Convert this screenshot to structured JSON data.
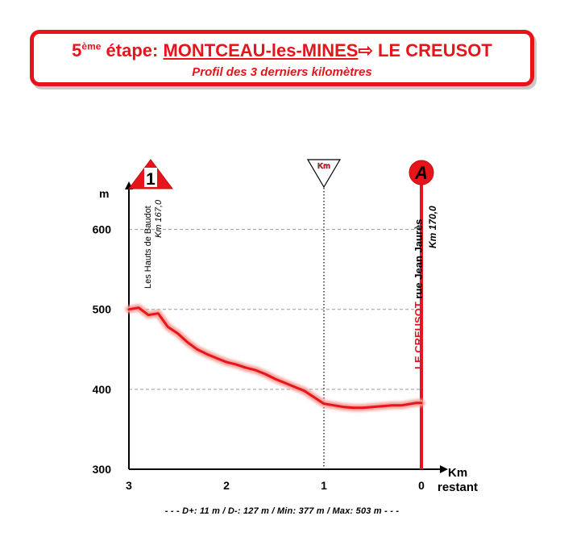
{
  "header": {
    "stage_num": "5",
    "stage_sup": "ème",
    "stage_word": " étape: ",
    "start_town": "MONTCEAU-les-MINES",
    "arrow": "⇨",
    "end_town": " LE CREUSOT",
    "subtitle": "Profil des 3 derniers kilomètres"
  },
  "colors": {
    "accent": "#e8141b",
    "profile_glow": "#f5a099",
    "grid": "#9a9a9a"
  },
  "chart_data": {
    "type": "line",
    "xlabel": "Km restant",
    "ylabel": "m",
    "xlim": [
      3,
      0
    ],
    "ylim": [
      300,
      650
    ],
    "x_ticks": [
      "3",
      "2",
      "1",
      "0"
    ],
    "y_ticks": [
      "300",
      "400",
      "500",
      "600"
    ],
    "gridlines_y": [
      400,
      500,
      600
    ],
    "xlabel_line1": "Km",
    "xlabel_line2": "restant",
    "series": [
      {
        "x": [
          3.0,
          2.9,
          2.8,
          2.7,
          2.6,
          2.5,
          2.4,
          2.3,
          2.2,
          2.1,
          2.0,
          1.9,
          1.8,
          1.7,
          1.6,
          1.5,
          1.4,
          1.3,
          1.2,
          1.1,
          1.0,
          0.9,
          0.8,
          0.7,
          0.6,
          0.5,
          0.4,
          0.3,
          0.2,
          0.1,
          0.05,
          0.0
        ],
        "y": [
          500,
          502,
          493,
          495,
          478,
          470,
          459,
          450,
          444,
          439,
          434,
          431,
          427,
          424,
          419,
          413,
          408,
          403,
          398,
          390,
          382,
          380,
          378,
          377,
          377,
          378,
          379,
          380,
          380,
          382,
          383,
          383
        ]
      }
    ],
    "markers": [
      {
        "km": 3.0,
        "symbol": "1",
        "type": "climb",
        "labels": [
          "Les Hauts de Baudot",
          "Km 167,0"
        ]
      },
      {
        "km": 1.0,
        "symbol": "Km",
        "type": "flamme-rouge"
      },
      {
        "km": 0.0,
        "symbol": "A",
        "type": "arrival",
        "labels": [
          "LE CREUSOT rue Jean Jaurès",
          "Km 170,0"
        ],
        "label_city": "LE CREUSOT",
        "label_street": " rue Jean Jaurès",
        "label_km": "Km 170,0"
      }
    ]
  },
  "footer": {
    "stats": "- - - D+: 11 m / D-: 127 m / Min: 377 m / Max: 503 m - - -"
  }
}
